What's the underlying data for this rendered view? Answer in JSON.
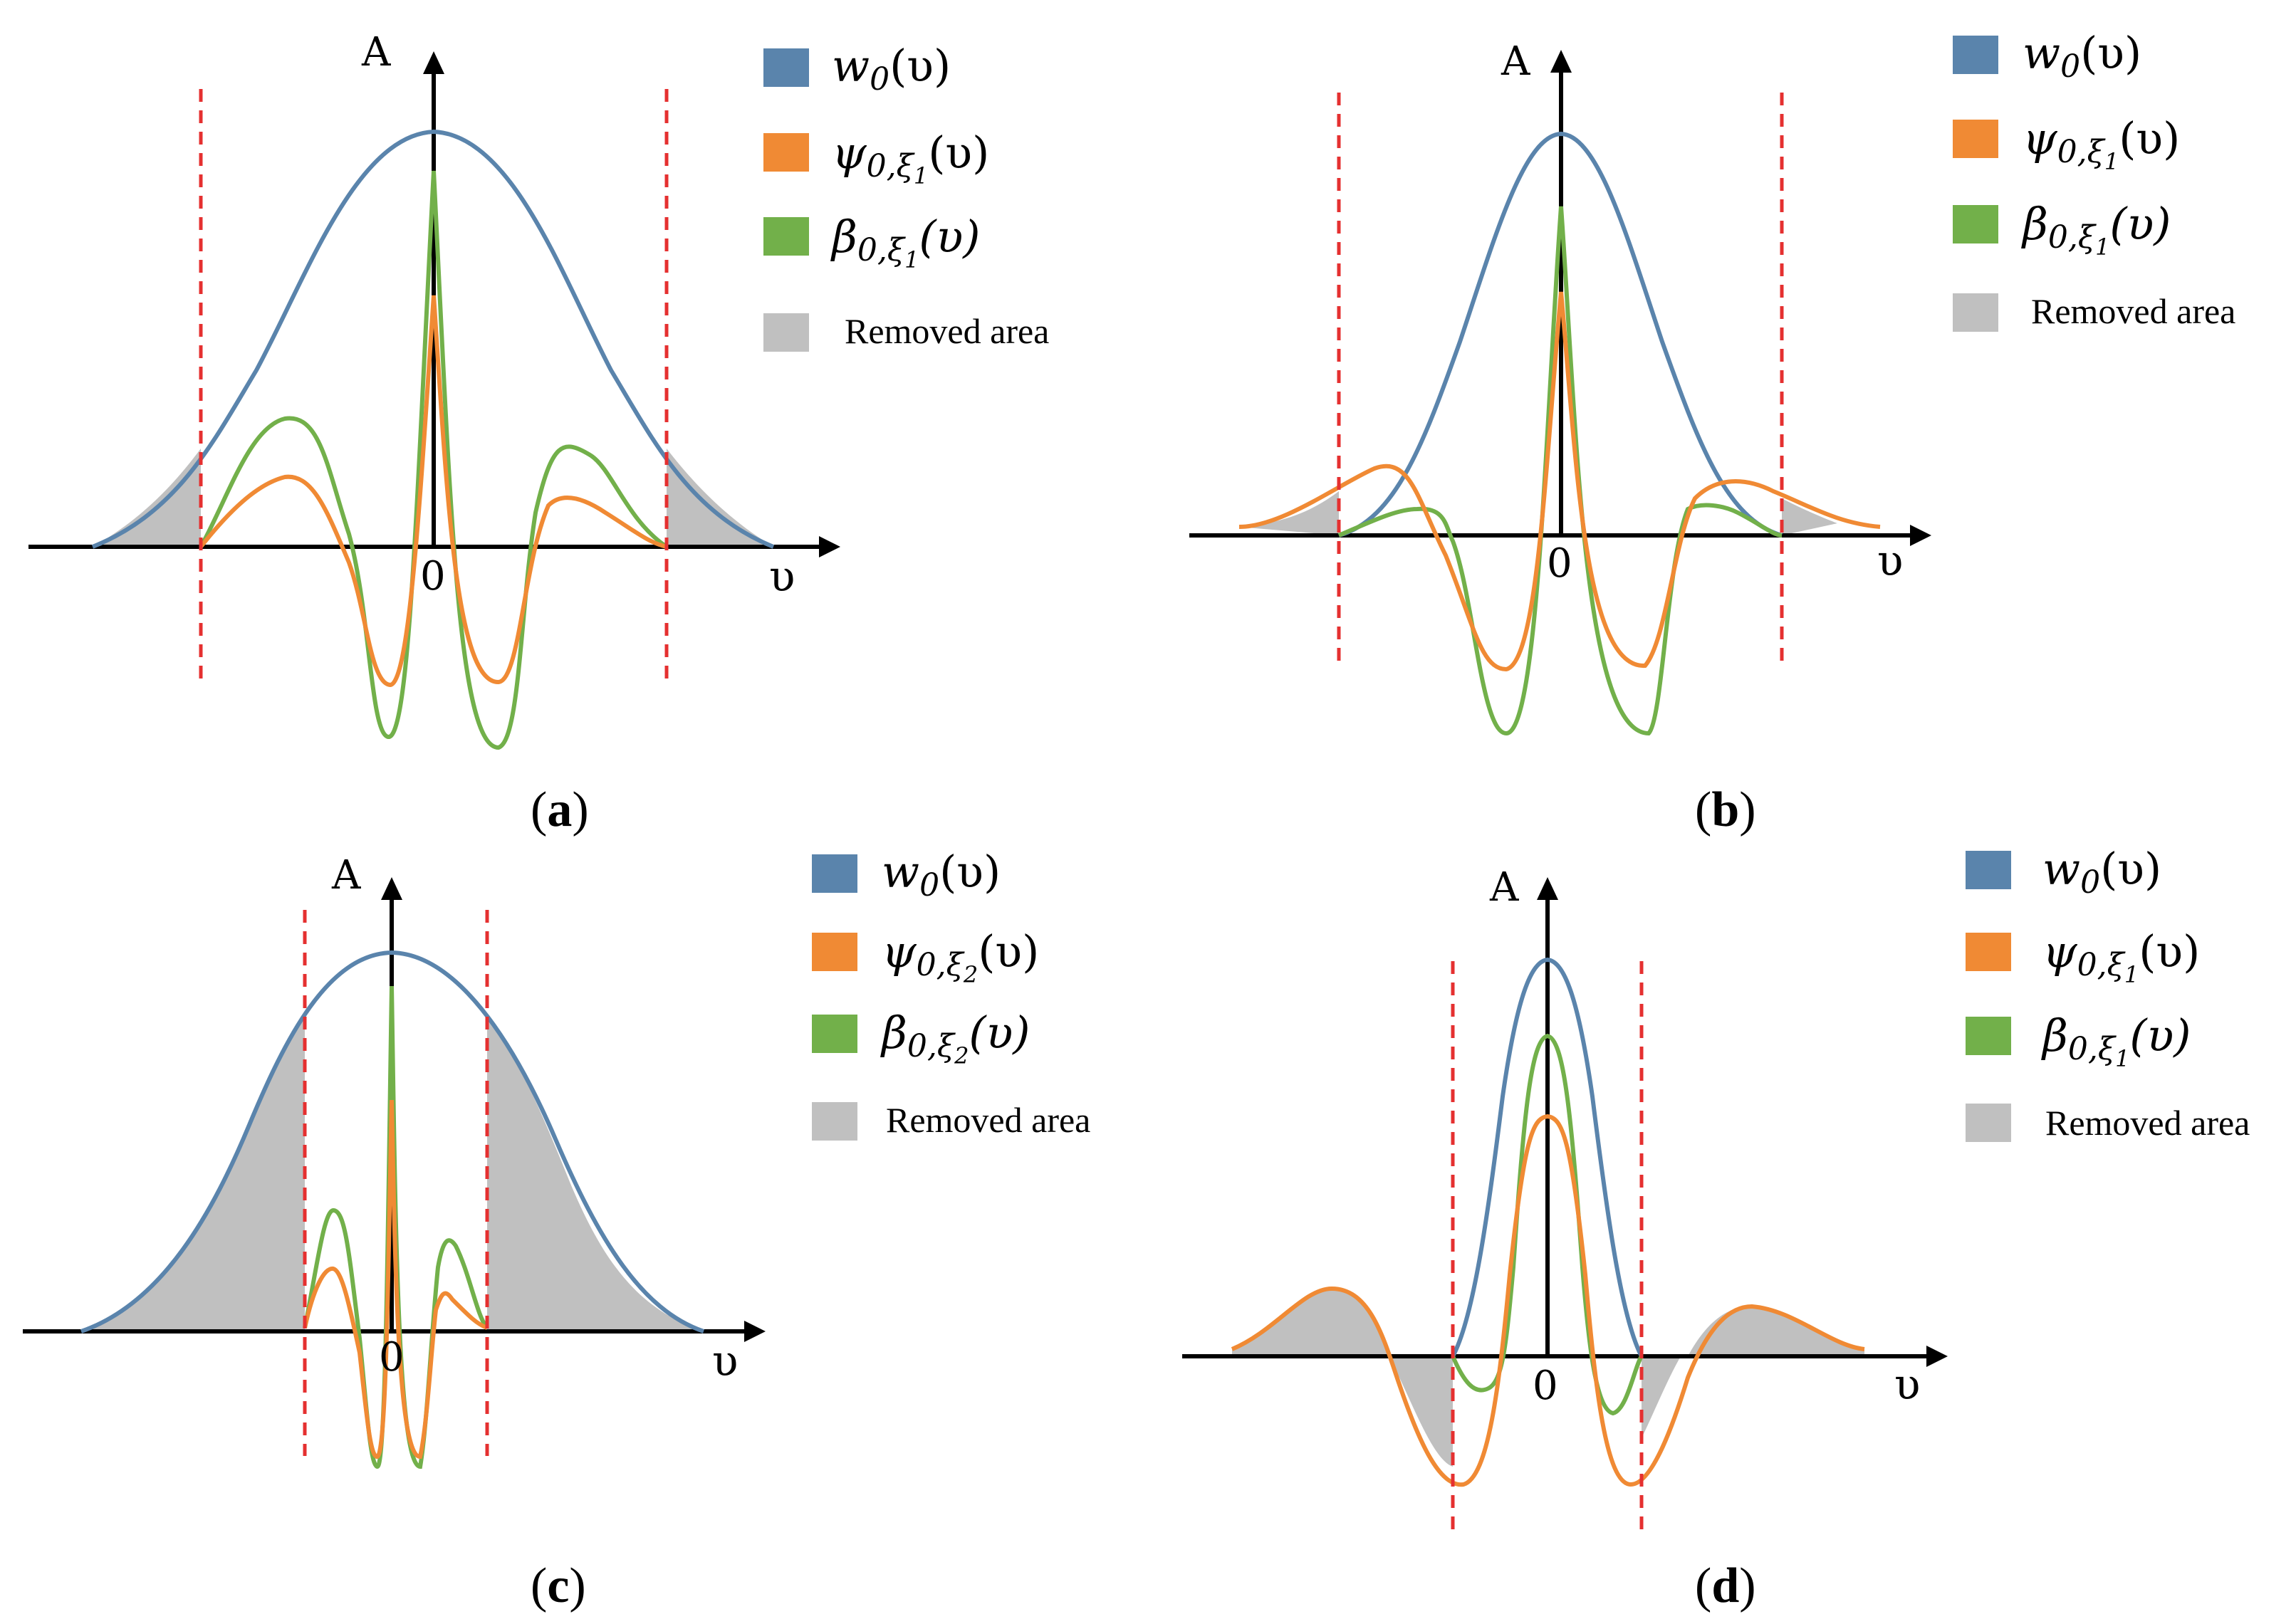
{
  "colors": {
    "w0": "#5a84ac",
    "psi": "#f08a34",
    "beta": "#72b04a",
    "removed": "#c0c0c0",
    "cutoff": "#e53030",
    "axis": "#000000"
  },
  "panels": [
    {
      "id": "a",
      "caption": {
        "pre": "(",
        "letter": "a",
        "post": ")"
      },
      "axis_y_label": "A",
      "axis_x_label": "υ",
      "origin_label": "0",
      "legend": {
        "w0": {
          "sym": "w",
          "sub": "0",
          "arg": "(υ)"
        },
        "psi": {
          "sym": "ψ",
          "sub": "0,ξ",
          "subsub": "1",
          "arg": "(υ)"
        },
        "beta": {
          "sym": "β",
          "sub": "0,ξ",
          "subsub": "1",
          "arg": "(υ)"
        },
        "removed": "Removed area"
      }
    },
    {
      "id": "b",
      "caption": {
        "pre": "(",
        "letter": "b",
        "post": ")"
      },
      "axis_y_label": "A",
      "axis_x_label": "υ",
      "origin_label": "0",
      "legend": {
        "w0": {
          "sym": "w",
          "sub": "0",
          "arg": "(υ)"
        },
        "psi": {
          "sym": "ψ",
          "sub": "0,ξ",
          "subsub": "1",
          "arg": "(υ)"
        },
        "beta": {
          "sym": "β",
          "sub": "0,ξ",
          "subsub": "1",
          "arg": "(υ)"
        },
        "removed": "Removed area"
      }
    },
    {
      "id": "c",
      "caption": {
        "pre": "(",
        "letter": "c",
        "post": ")"
      },
      "axis_y_label": "A",
      "axis_x_label": "υ",
      "origin_label": "0",
      "legend": {
        "w0": {
          "sym": "w",
          "sub": "0",
          "arg": "(υ)"
        },
        "psi": {
          "sym": "ψ",
          "sub": "0,ξ",
          "subsub": "2",
          "arg": "(υ)"
        },
        "beta": {
          "sym": "β",
          "sub": "0,ξ",
          "subsub": "2",
          "arg": "(υ)"
        },
        "removed": "Removed area"
      }
    },
    {
      "id": "d",
      "caption": {
        "pre": "(",
        "letter": "d",
        "post": ")"
      },
      "axis_y_label": "A",
      "axis_x_label": "υ",
      "origin_label": "0",
      "legend": {
        "w0": {
          "sym": "w",
          "sub": "0",
          "arg": "(υ)"
        },
        "psi": {
          "sym": "ψ",
          "sub": "0,ξ",
          "subsub": "1",
          "arg": "(υ)"
        },
        "beta": {
          "sym": "β",
          "sub": "0,ξ",
          "subsub": "1",
          "arg": "(υ)"
        },
        "removed": "Removed area"
      }
    }
  ]
}
